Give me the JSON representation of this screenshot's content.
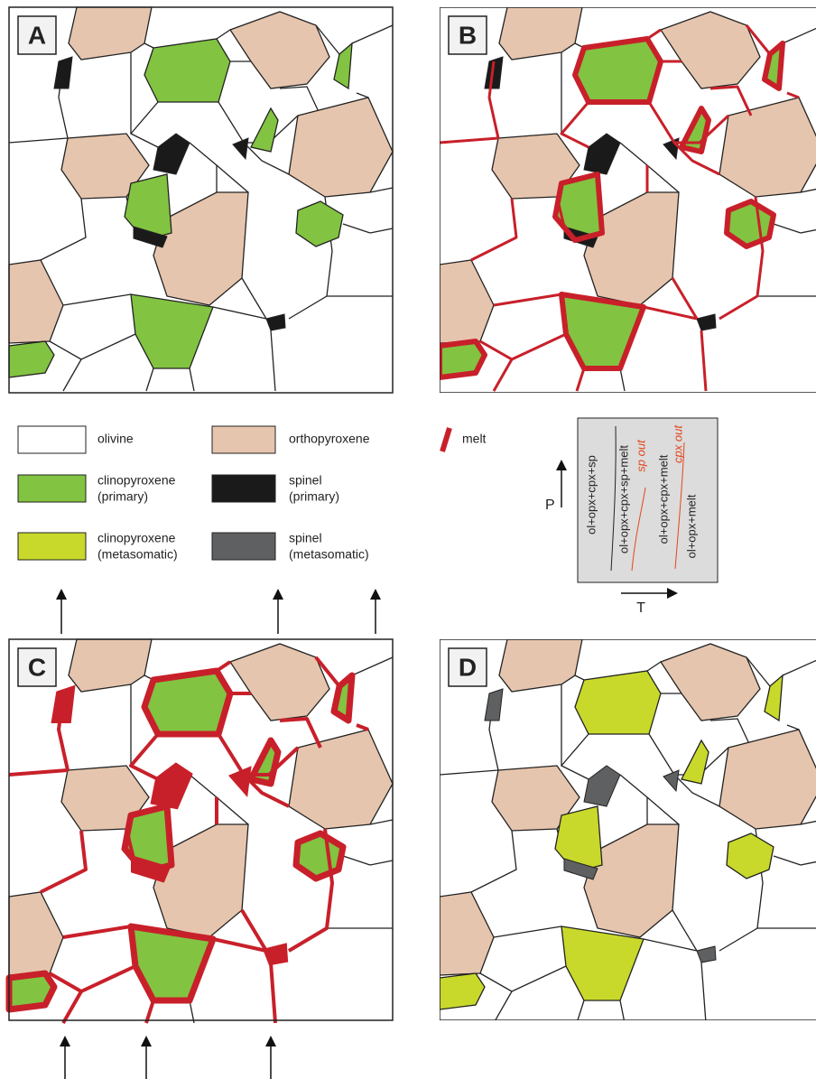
{
  "panels": [
    {
      "label": "A"
    },
    {
      "label": "B"
    },
    {
      "label": "C"
    },
    {
      "label": "D"
    }
  ],
  "legend": {
    "olivine": "olivine",
    "orthopyroxene": "orthopyroxene",
    "melt": "melt",
    "cpx_primary": [
      "clinopyroxene",
      "(primary)"
    ],
    "spinel_primary": [
      "spinel",
      "(primary)"
    ],
    "cpx_metasomatic": [
      "clinopyroxene",
      "(metasomatic)"
    ],
    "spinel_metasomatic": [
      "spinel",
      "(metasomatic)"
    ]
  },
  "phase_diagram": {
    "y_axis": "P",
    "x_axis": "T",
    "fields": [
      "ol+opx+cpx+sp",
      "ol+opx+cpx+sp+melt",
      "ol+opx+cpx+melt",
      "ol+opx+melt"
    ],
    "boundaries": [
      "sp out",
      "cpx out"
    ]
  }
}
